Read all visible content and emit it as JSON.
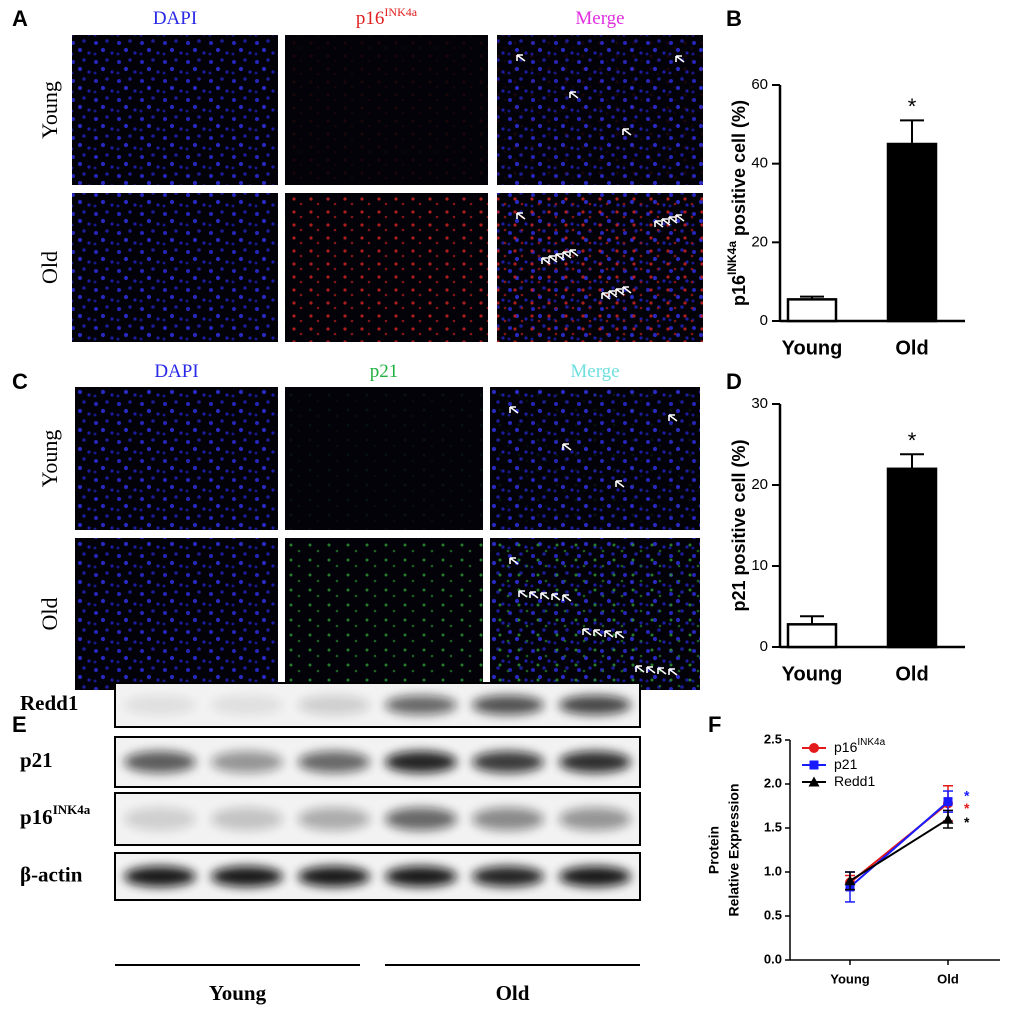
{
  "panels": {
    "labels": [
      "A",
      "B",
      "C",
      "D",
      "E",
      "F"
    ]
  },
  "microscopy": [
    {
      "columns": [
        {
          "text": "DAPI",
          "color": "#2a2ae6"
        },
        {
          "text": "p16",
          "sup": "INK4a",
          "color": "#e02020"
        },
        {
          "text": "Merge",
          "color": "#e030e0"
        }
      ],
      "rows": [
        "Young",
        "Old"
      ]
    },
    {
      "columns": [
        {
          "text": "DAPI",
          "color": "#2a2ae6"
        },
        {
          "text": "p21",
          "color": "#20b040"
        },
        {
          "text": "Merge",
          "color": "#70e0e0"
        }
      ],
      "rows": [
        "Young",
        "Old"
      ]
    }
  ],
  "blot": {
    "rows": [
      {
        "text": "Redd1"
      },
      {
        "text": "p21"
      },
      {
        "text": "p16",
        "sup": "INK4a"
      },
      {
        "text": "β-actin"
      }
    ],
    "groups": [
      "Young",
      "Old"
    ]
  },
  "chart_data": [
    {
      "type": "bar",
      "ylabel": [
        {
          "text": "p16"
        },
        {
          "text": "INK4a",
          "sup": true
        },
        {
          "text": " positive cell (%)"
        }
      ],
      "categories": [
        "Young",
        "Old"
      ],
      "values": [
        5.5,
        45
      ],
      "errors": [
        0.7,
        6
      ],
      "colors": [
        "#ffffff",
        "#000000"
      ],
      "ylim": [
        0,
        60
      ],
      "yticks": [
        0,
        20,
        40,
        60
      ],
      "annotation": "*"
    },
    {
      "type": "bar",
      "ylabel": [
        {
          "text": "p21 positive cell (%)"
        }
      ],
      "categories": [
        "Young",
        "Old"
      ],
      "values": [
        2.8,
        22
      ],
      "errors": [
        1.0,
        1.8
      ],
      "colors": [
        "#ffffff",
        "#000000"
      ],
      "ylim": [
        0,
        30
      ],
      "yticks": [
        0,
        10,
        20,
        30
      ],
      "annotation": "*"
    },
    {
      "type": "line",
      "ylabel": [
        {
          "text": "Protein"
        },
        {
          "text": "Relative Expression"
        }
      ],
      "categories": [
        "Young",
        "Old"
      ],
      "series": [
        {
          "name": "p16",
          "name_sup": "INK4a",
          "color": "#e31a1c",
          "marker": "circle",
          "values": [
            0.88,
            1.78
          ],
          "errors": [
            0.08,
            0.2
          ],
          "annotation": "*"
        },
        {
          "name": "p21",
          "color": "#1a1aff",
          "marker": "square",
          "values": [
            0.83,
            1.8
          ],
          "errors": [
            0.17,
            0.12
          ],
          "annotation": "*"
        },
        {
          "name": "Redd1",
          "color": "#000000",
          "marker": "triangle",
          "values": [
            0.9,
            1.6
          ],
          "errors": [
            0.1,
            0.1
          ],
          "annotation": "*"
        }
      ],
      "ylim": [
        0,
        2.5
      ],
      "yticks": [
        {
          "value": 0,
          "label": "0.0"
        },
        {
          "value": 0.5,
          "label": "0.5"
        },
        {
          "value": 1,
          "label": "1.0"
        },
        {
          "value": 1.5,
          "label": "1.5"
        },
        {
          "value": 2,
          "label": "2.0"
        },
        {
          "value": 2.5,
          "label": "2.5"
        }
      ],
      "legend": "upper left"
    }
  ]
}
